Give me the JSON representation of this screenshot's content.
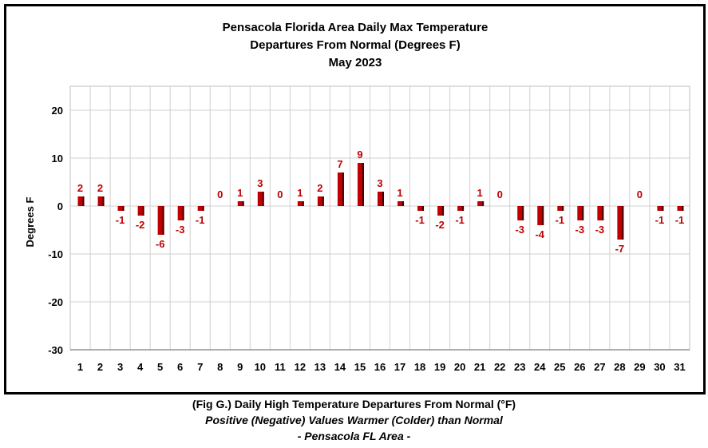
{
  "chart_data": {
    "type": "bar",
    "title_lines": [
      "Pensacola Florida Area Daily Max Temperature",
      "Departures From Normal (Degrees F)",
      "May 2023"
    ],
    "xlabel": "",
    "ylabel": "Degrees F",
    "ylim": [
      -30,
      25
    ],
    "yticks": [
      20,
      10,
      0,
      -10,
      -20,
      -30
    ],
    "grid": true,
    "legend": "none",
    "categories": [
      "1",
      "2",
      "3",
      "4",
      "5",
      "6",
      "7",
      "8",
      "9",
      "10",
      "11",
      "12",
      "13",
      "14",
      "15",
      "16",
      "17",
      "18",
      "19",
      "20",
      "21",
      "22",
      "23",
      "24",
      "25",
      "26",
      "27",
      "28",
      "29",
      "30",
      "31"
    ],
    "values": [
      2,
      2,
      -1,
      -2,
      -6,
      -3,
      -1,
      0,
      1,
      3,
      0,
      1,
      2,
      7,
      9,
      3,
      1,
      -1,
      -2,
      -1,
      1,
      0,
      -3,
      -4,
      -1,
      -3,
      -3,
      -7,
      0,
      -1,
      -1
    ],
    "bar_color": "#c00000",
    "bar_shadow_color": "#3a0000",
    "label_color": "#c00000"
  },
  "caption": {
    "line1": "(Fig G.) Daily High Temperature Departures From Normal (°F)",
    "line2": "Positive (Negative) Values Warmer (Colder) than Normal",
    "line3": "- Pensacola FL Area -"
  }
}
